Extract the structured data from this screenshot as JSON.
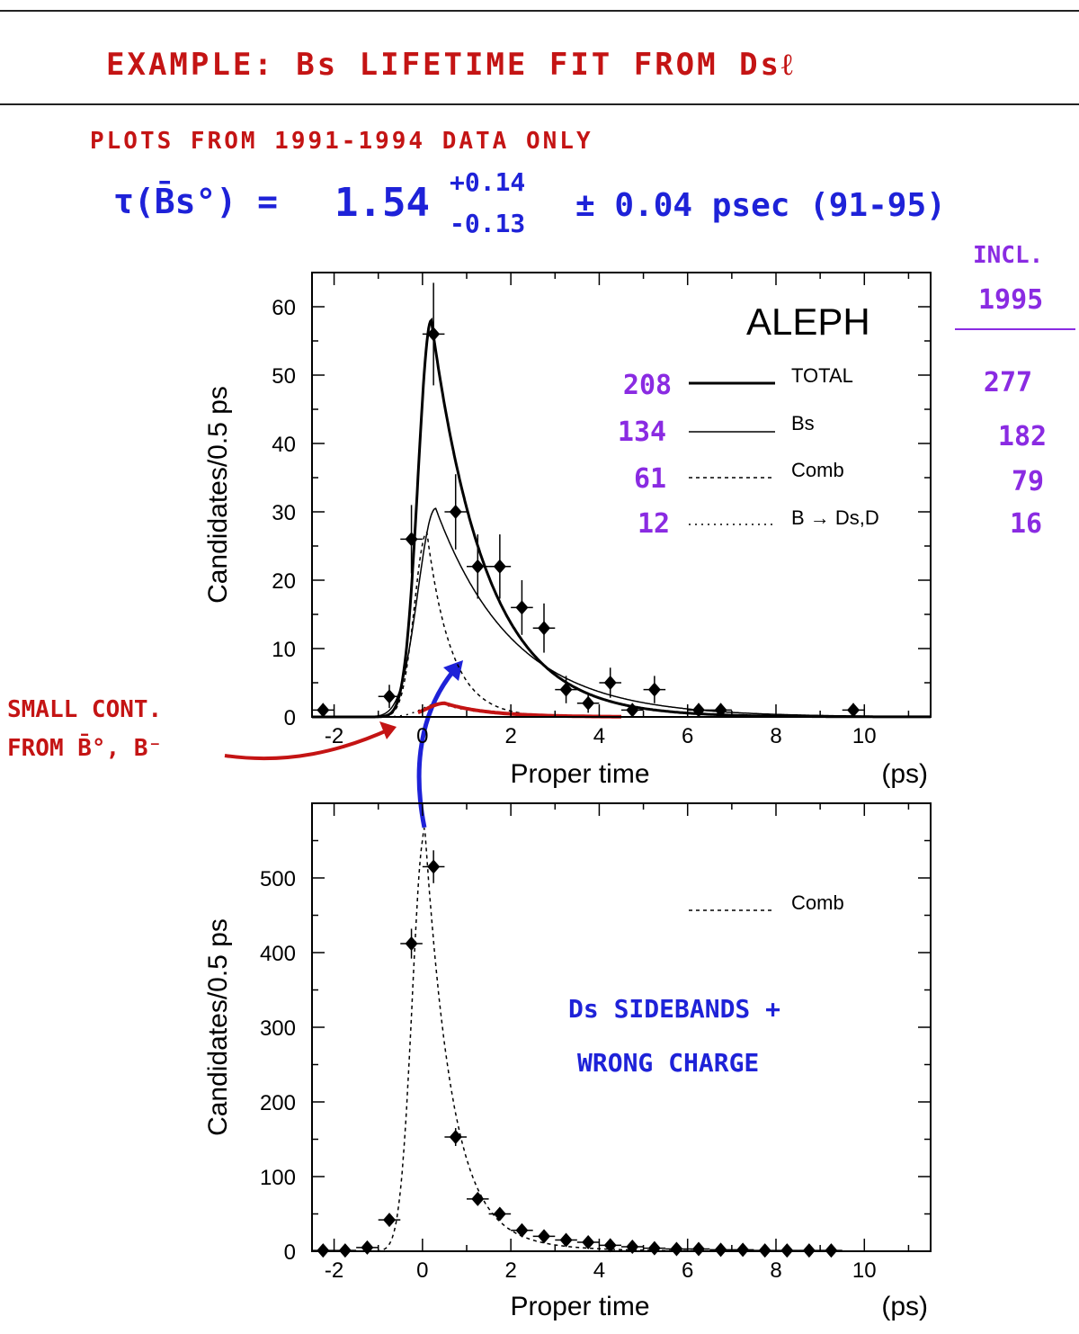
{
  "annotations": {
    "header": "EXAMPLE: Bs LIFETIME FIT FROM Dsℓ",
    "subheader": "PLOTS FROM 1991-1994 DATA ONLY",
    "formula": {
      "lhs": "τ(B̄s°) =",
      "value": "1.54",
      "err_plus": "+0.14",
      "err_minus": "-0.13",
      "syst": "± 0.04 psec (91-95)"
    },
    "incl_label": [
      "INCL.",
      "1995"
    ],
    "counts_9194": [
      "208",
      "134",
      "61",
      "12"
    ],
    "counts_incl1995": [
      "277",
      "182",
      "79",
      "16"
    ],
    "small_contribution": [
      "SMALL CONT.",
      "FROM B̄°, B⁻"
    ],
    "sidebands": [
      "Ds SIDEBANDS +",
      "WRONG CHARGE"
    ],
    "colors": {
      "red_ink": "#c41414",
      "blue_ink": "#1e22d8",
      "purple_ink": "#8a2be2"
    }
  },
  "chart_data": [
    {
      "type": "scatter",
      "experiment_label": "ALEPH",
      "xlabel": "Proper time",
      "xunit": "(ps)",
      "ylabel": "Candidates/0.5 ps",
      "xlim": [
        -2.5,
        11.5
      ],
      "ylim": [
        0,
        65
      ],
      "xticks": [
        "-2",
        "0",
        "2",
        "4",
        "6",
        "8",
        "10"
      ],
      "yticks": [
        "0",
        "10",
        "20",
        "30",
        "40",
        "50",
        "60"
      ],
      "points": {
        "x": [
          -2.25,
          -0.75,
          -0.25,
          0.25,
          0.75,
          1.25,
          1.75,
          2.25,
          2.75,
          3.25,
          3.75,
          4.25,
          4.75,
          5.25,
          6.25,
          6.75,
          9.75
        ],
        "y": [
          1,
          3,
          26,
          56,
          30,
          22,
          22,
          16,
          13,
          4,
          2,
          5,
          1,
          4,
          1,
          1,
          1
        ],
        "err": [
          1,
          1.7,
          5,
          7.5,
          5.5,
          4.7,
          4.7,
          4,
          3.6,
          2,
          1.4,
          2.2,
          1,
          2,
          1,
          1,
          1
        ]
      },
      "legend": [
        "TOTAL",
        "Bs",
        "Comb",
        "B → Ds,D"
      ],
      "curve_peaks": {
        "TOTAL": 58,
        "Bs": 30.5,
        "Comb": 27,
        "B → Ds,D": 2
      }
    },
    {
      "type": "scatter",
      "xlabel": "Proper time",
      "xunit": "(ps)",
      "ylabel": "Candidates/0.5 ps",
      "xlim": [
        -2.5,
        11.5
      ],
      "ylim": [
        0,
        600
      ],
      "xticks": [
        "-2",
        "0",
        "2",
        "4",
        "6",
        "8",
        "10"
      ],
      "yticks": [
        "0",
        "100",
        "200",
        "300",
        "400",
        "500"
      ],
      "points": {
        "x": [
          -2.25,
          -1.75,
          -1.25,
          -0.75,
          -0.25,
          0.25,
          0.75,
          1.25,
          1.75,
          2.25,
          2.75,
          3.25,
          3.75,
          4.25,
          4.75,
          5.25,
          5.75,
          6.25,
          6.75,
          7.25,
          7.75,
          8.25,
          8.75,
          9.25
        ],
        "y": [
          1,
          1,
          5,
          42,
          412,
          515,
          153,
          70,
          50,
          28,
          20,
          15,
          12,
          8,
          6,
          4,
          3,
          3,
          2,
          2,
          1,
          1,
          1,
          1
        ],
        "err": [
          1,
          1,
          2,
          6,
          20,
          22,
          12,
          8,
          7,
          5,
          4,
          4,
          3,
          3,
          2,
          2,
          2,
          2,
          1,
          1,
          1,
          1,
          1,
          1
        ]
      },
      "legend": [
        "Comb"
      ]
    }
  ]
}
